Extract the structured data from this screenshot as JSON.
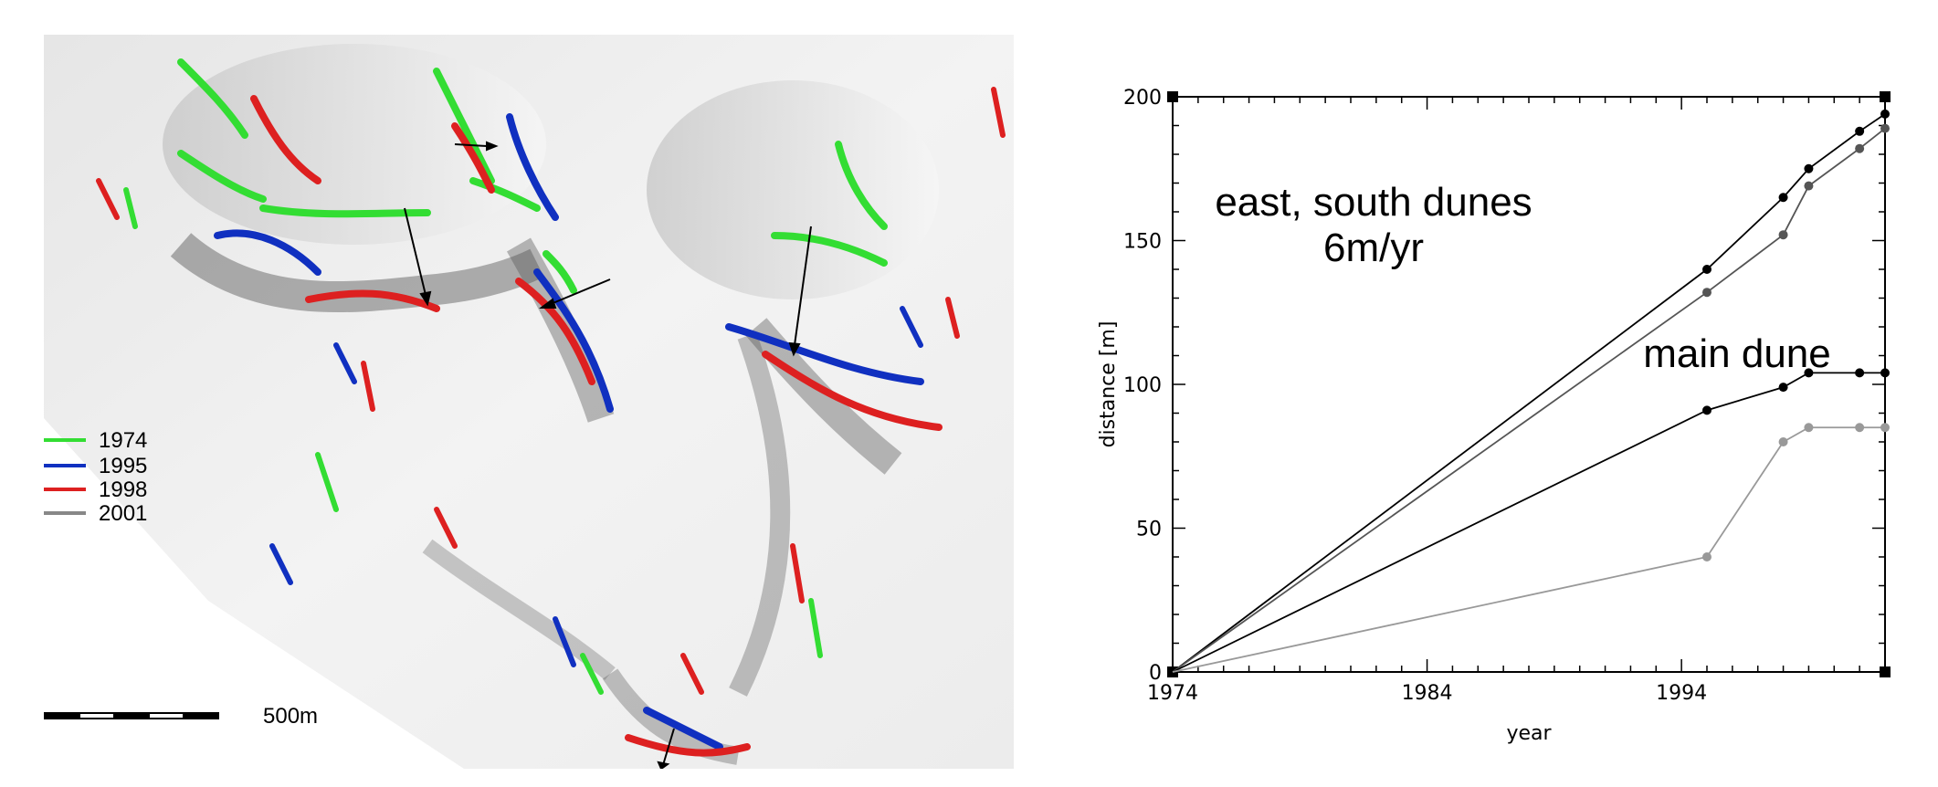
{
  "map": {
    "legend": [
      {
        "label": "1974",
        "color": "#33dd33"
      },
      {
        "label": "1995",
        "color": "#1030c0"
      },
      {
        "label": "1998",
        "color": "#dd2020"
      },
      {
        "label": "2001",
        "color": "#888888"
      }
    ],
    "scale_label": "500m"
  },
  "chart_data": {
    "type": "line",
    "title": "",
    "xlabel": "year",
    "ylabel": "distance [m]",
    "xlim": [
      1974,
      2002
    ],
    "ylim": [
      0,
      200
    ],
    "xticks": [
      1974,
      1984,
      1994
    ],
    "yticks": [
      0,
      50,
      100,
      150,
      200
    ],
    "grid": false,
    "annotations": [
      {
        "text": "east, south dunes"
      },
      {
        "text": "6m/yr"
      },
      {
        "text": "main dune"
      }
    ],
    "series": [
      {
        "color": "#000000",
        "x": [
          1974,
          1995,
          1998,
          1999,
          2001,
          2002
        ],
        "y": [
          0,
          140,
          165,
          175,
          188,
          194
        ]
      },
      {
        "color": "#555555",
        "x": [
          1974,
          1995,
          1998,
          1999,
          2001,
          2002
        ],
        "y": [
          0,
          132,
          152,
          169,
          182,
          189
        ]
      },
      {
        "color": "#000000",
        "x": [
          1974,
          1995,
          1998,
          1999,
          2001,
          2002
        ],
        "y": [
          0,
          91,
          99,
          104,
          104,
          104
        ]
      },
      {
        "color": "#999999",
        "x": [
          1974,
          1995,
          1998,
          1999,
          2001,
          2002
        ],
        "y": [
          0,
          40,
          80,
          85,
          85,
          85
        ]
      }
    ]
  }
}
